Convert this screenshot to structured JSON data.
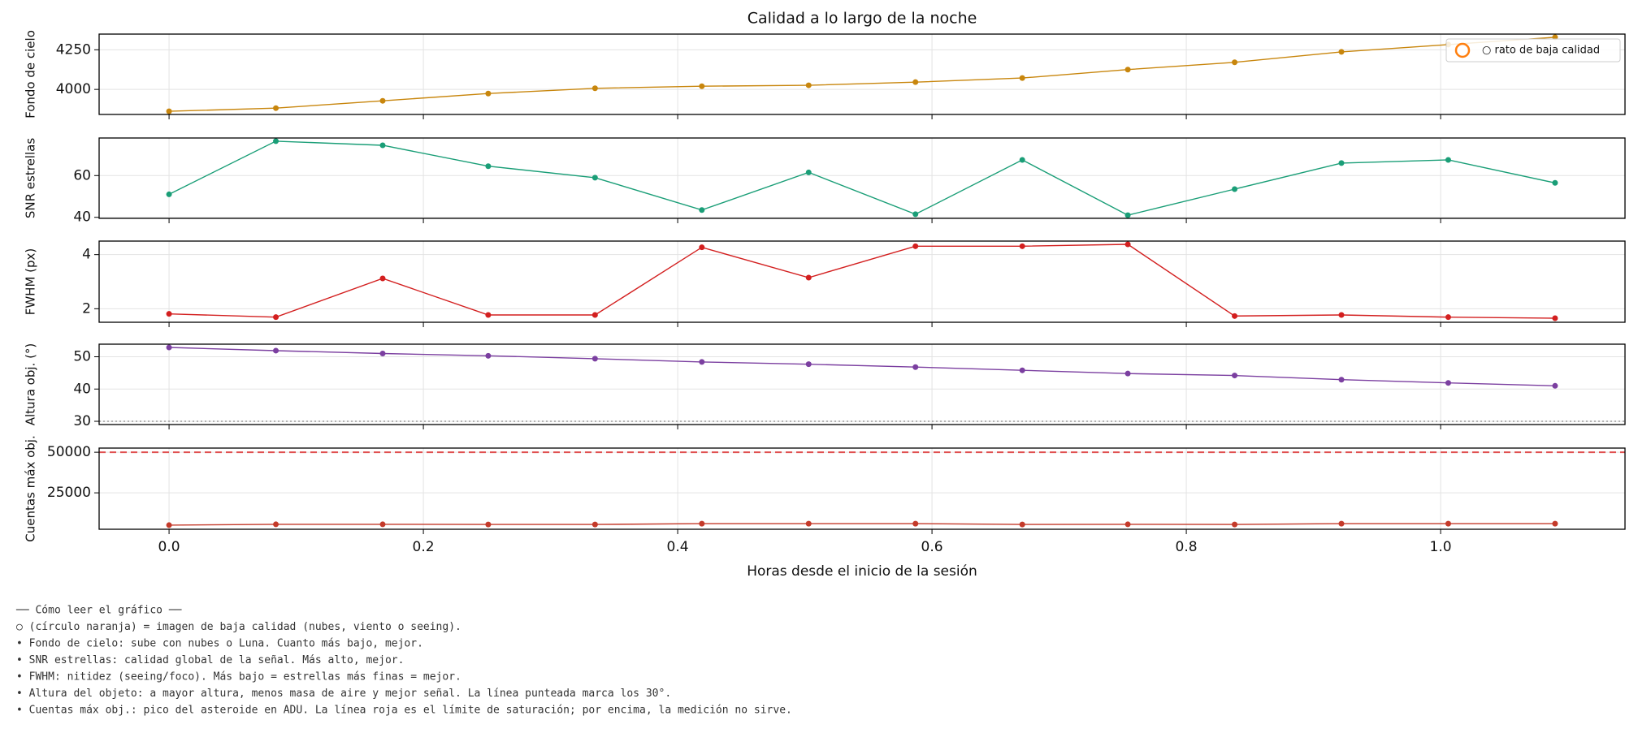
{
  "chart_data": [
    {
      "type": "line",
      "title": "Calidad a lo largo de la noche",
      "ylabel": "Fondo de cielo",
      "color": "#c8860d",
      "x": [
        0,
        0.084,
        0.168,
        0.251,
        0.335,
        0.419,
        0.503,
        0.587,
        0.671,
        0.754,
        0.838,
        0.922,
        1.006,
        1.09
      ],
      "values": [
        3862,
        3882,
        3928,
        3974,
        4007,
        4020,
        4026,
        4046,
        4072,
        4125,
        4171,
        4237,
        4283,
        4329
      ],
      "xlim": [
        -0.055,
        1.145
      ],
      "ylim": [
        3842,
        4349
      ],
      "yticks": [
        4000,
        4250
      ],
      "grid": true,
      "legend": {
        "label": "○ rato de baja calidad",
        "color": "#ff7f0e",
        "corner": "upper right"
      }
    },
    {
      "type": "line",
      "ylabel": "SNR estrellas",
      "color": "#1a9e77",
      "x": [
        0,
        0.084,
        0.168,
        0.251,
        0.335,
        0.419,
        0.503,
        0.587,
        0.671,
        0.754,
        0.838,
        0.922,
        1.006,
        1.09
      ],
      "values": [
        51,
        76.5,
        74.5,
        64.5,
        59,
        43.5,
        61.5,
        41.5,
        67.5,
        41,
        53.5,
        66,
        67.5,
        56.5
      ],
      "xlim": [
        -0.055,
        1.145
      ],
      "ylim": [
        39.5,
        78
      ],
      "yticks": [
        40,
        60
      ],
      "grid": true
    },
    {
      "type": "line",
      "ylabel": "FWHM (px)",
      "color": "#d31f1f",
      "x": [
        0,
        0.084,
        0.168,
        0.251,
        0.335,
        0.419,
        0.503,
        0.587,
        0.671,
        0.754,
        0.838,
        0.922,
        1.006,
        1.09
      ],
      "values": [
        1.81,
        1.69,
        3.12,
        1.77,
        1.77,
        4.27,
        3.15,
        4.31,
        4.31,
        4.38,
        1.73,
        1.77,
        1.69,
        1.65
      ],
      "xlim": [
        -0.055,
        1.145
      ],
      "ylim": [
        1.5,
        4.5
      ],
      "yticks": [
        2,
        4
      ],
      "grid": true
    },
    {
      "type": "line",
      "ylabel": "Altura obj. (°)",
      "color": "#7b3fa0",
      "x": [
        0,
        0.084,
        0.168,
        0.251,
        0.335,
        0.419,
        0.503,
        0.587,
        0.671,
        0.754,
        0.838,
        0.922,
        1.006,
        1.09
      ],
      "values": [
        52.9,
        51.9,
        51,
        50.3,
        49.4,
        48.4,
        47.7,
        46.8,
        45.8,
        44.8,
        44.2,
        42.9,
        41.9,
        41
      ],
      "xlim": [
        -0.055,
        1.145
      ],
      "ylim": [
        29,
        53.9
      ],
      "yticks": [
        30,
        40,
        50
      ],
      "grid": true,
      "hlines": [
        {
          "y": 30,
          "style": "dotted",
          "color": "#888888"
        }
      ]
    },
    {
      "type": "line",
      "ylabel": "Cuentas máx obj.",
      "color": "#c43a2a",
      "xlabel": "Horas desde el inicio de la sesión",
      "x": [
        0,
        0.084,
        0.168,
        0.251,
        0.335,
        0.419,
        0.503,
        0.587,
        0.671,
        0.754,
        0.838,
        0.922,
        1.006,
        1.09
      ],
      "values": [
        5100,
        5600,
        5600,
        5500,
        5500,
        6000,
        6000,
        6000,
        5500,
        5600,
        5500,
        6000,
        6000,
        6000
      ],
      "xlim": [
        -0.055,
        1.145
      ],
      "ylim": [
        2564,
        52564
      ],
      "yticks": [
        25000,
        50000
      ],
      "grid": true,
      "xticks": [
        {
          "value": 0,
          "label": "0.0"
        },
        {
          "value": 0.2,
          "label": "0.2"
        },
        {
          "value": 0.4,
          "label": "0.4"
        },
        {
          "value": 0.6,
          "label": "0.6"
        },
        {
          "value": 0.8,
          "label": "0.8"
        },
        {
          "value": 1,
          "label": "1.0"
        }
      ],
      "hlines": [
        {
          "y": 50000,
          "style": "dashed",
          "color": "#e05050"
        }
      ]
    }
  ],
  "notes": [
    "── Cómo leer el gráfico ──",
    "○ (círculo naranja) = imagen de baja calidad (nubes, viento o seeing).",
    "• Fondo de cielo: sube con nubes o Luna. Cuanto más bajo, mejor.",
    "• SNR estrellas: calidad global de la señal. Más alto, mejor.",
    "• FWHM: nitidez (seeing/foco). Más bajo = estrellas más finas = mejor.",
    "• Altura del objeto: a mayor altura, menos masa de aire y mejor señal. La línea punteada marca los 30°.",
    "• Cuentas máx obj.: pico del asteroide en ADU. La línea roja es el límite de saturación; por encima, la medición no sirve."
  ]
}
